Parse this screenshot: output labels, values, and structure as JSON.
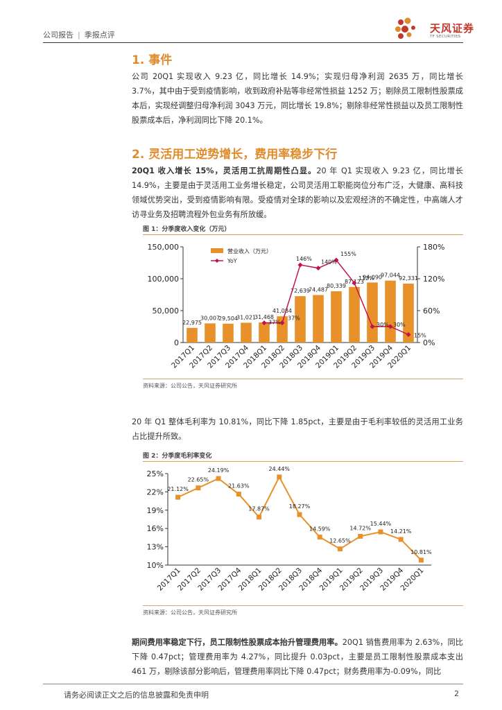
{
  "header": {
    "left_a": "公司报告",
    "left_b": "季报点评",
    "logo_cn": "天风证券",
    "logo_en": "TF SECURITIES"
  },
  "section1": {
    "title": "1. 事件",
    "para": "公司 20Q1 实现收入 9.23 亿，同比增长 14.9%；实现归母净利润 2635 万，同比增长 3.7%，其中由于受到疫情影响，收到政府补贴等非经常性损益 1252 万；剔除员工限制性股票成本后，实现经调整归母净利润 3043 万元，同比增长 19.8%；剔除非经常性损益以及员工限制性股票成本后，净利润同比下降 20.1%。"
  },
  "section2": {
    "title": "2. 灵活用工逆势增长，费用率稳步下行",
    "para_bold": "20Q1 收入增长 15%，灵活用工抗周期性凸显。",
    "para_rest": "20 年 Q1 实现收入 9.23 亿，同比增长 14.9%，主要是由于灵活用工业务增长稳定，公司灵活用工职能岗位分布广泛，大健康、高科技领域优势突出，受到疫情影响有限。受疫情对全球的影响以及宏观经济的不确定性，中高端人才访寻业务及招聘流程外包业务有所放缓。"
  },
  "fig1": {
    "title": "图 1：分季度收入变化（万元）",
    "source": "资料来源：公司公告，天风证券研究所"
  },
  "mid_para": "20 年 Q1 整体毛利率为 10.81%，同比下降 1.85pct，主要是由于毛利率较低的灵活用工业务占比提升所致。",
  "fig2": {
    "title": "图 2：分季度毛利率变化",
    "source": "资料来源：公司公告，天风证券研究所"
  },
  "bottom": {
    "para_bold": "期间费用率稳定下行，员工限制性股票成本抬升管理费用率。",
    "para_rest": "20Q1 销售费用率为 2.63%，同比下降 0.47pct；管理费用率为 4.27%，同比提升 0.03pct，主要是员工限制性股票成本支出 461 万，剔除该部分影响后，管理费用率同比下降 0.47pct；财务费用率为-0.09%，同比"
  },
  "footer": {
    "left": "请务必阅读正文之后的信息披露和免责申明",
    "page": "2"
  },
  "colors": {
    "accent": "#e08b2c",
    "bar": "#e8902a",
    "line": "#c0134a",
    "brand": "#c0392b"
  },
  "chart_data": [
    {
      "type": "bar",
      "categories": [
        "2017Q1",
        "2017Q2",
        "2017Q3",
        "2017Q4",
        "2018Q1",
        "2018Q2",
        "2018Q3",
        "2018Q4",
        "2019Q1",
        "2019Q2",
        "2019Q3",
        "2019Q4",
        "2020Q1"
      ],
      "series": [
        {
          "name": "营业收入（万元）",
          "type": "bar",
          "axis": "left",
          "values": [
            22975,
            30007,
            29504,
            31021,
            31468,
            41084,
            72639,
            74487,
            80339,
            87123,
            94090,
            97044,
            92331
          ],
          "labels": [
            "22,975",
            "30,007",
            "29,504",
            "31,021",
            "31,468",
            "41,084",
            "72,639",
            "74,487",
            "80,339",
            "87,123",
            "94,090",
            "97,044",
            "92,331"
          ]
        },
        {
          "name": "YoY",
          "type": "line",
          "axis": "right",
          "values": [
            null,
            null,
            null,
            null,
            37,
            37,
            146,
            140,
            155,
            112,
            30,
            30,
            15
          ],
          "labels": [
            "",
            "",
            "",
            "",
            "37%",
            "37%",
            "146%",
            "140%",
            "155%",
            "112%",
            "30%",
            "30%",
            "15%"
          ]
        }
      ],
      "ylim": [
        0,
        150000
      ],
      "y_ticks": [
        "0",
        "50,000",
        "100,000",
        "150,000"
      ],
      "y2lim": [
        0,
        180
      ],
      "y2_ticks": [
        "0%",
        "60%",
        "120%",
        "180%"
      ],
      "legend": [
        "营业收入（万元）",
        "YoY"
      ],
      "legend_position": "top-left"
    },
    {
      "type": "line",
      "categories": [
        "2017Q1",
        "2017Q2",
        "2017Q3",
        "2017Q4",
        "2018Q1",
        "2018Q2",
        "2018Q3",
        "2018Q4",
        "2019Q1",
        "2019Q2",
        "2019Q3",
        "2019Q4",
        "2020Q1"
      ],
      "series": [
        {
          "name": "毛利率",
          "values": [
            21.12,
            22.65,
            24.19,
            21.63,
            17.87,
            24.44,
            18.27,
            14.59,
            12.65,
            14.72,
            15.44,
            14.21,
            10.81
          ],
          "labels": [
            "21.12%",
            "22.65%",
            "24.19%",
            "21.63%",
            "17.87%",
            "24.44%",
            "18.27%",
            "14.59%",
            "12.65%",
            "14.72%",
            "15.44%",
            "14.21%",
            "10.81%"
          ]
        }
      ],
      "ylim": [
        10,
        25
      ],
      "y_ticks": [
        "10%",
        "13%",
        "16%",
        "19%",
        "22%",
        "25%"
      ]
    }
  ]
}
